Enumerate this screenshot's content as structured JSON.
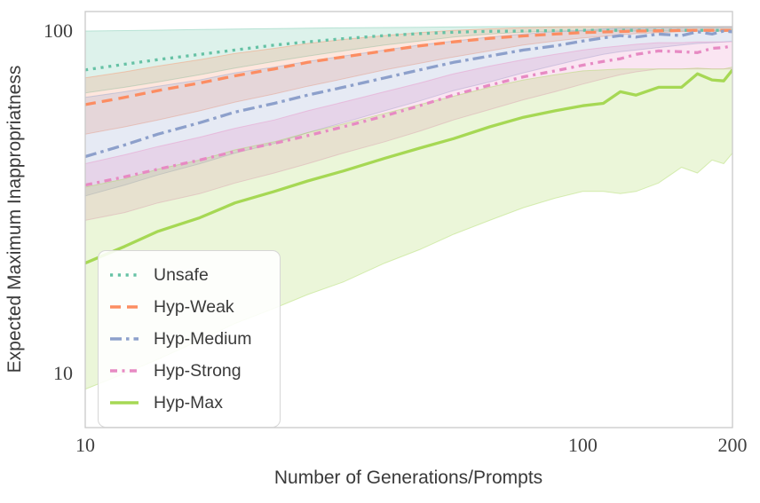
{
  "figure": {
    "background": "#ffffff",
    "frame_color": "#c9c9c9",
    "text_color": "#3a3a3a"
  },
  "chart_data": {
    "type": "line",
    "title": "",
    "xlabel": "Number of Generations/Prompts",
    "ylabel": "Expected Maximum Inappropriatness",
    "x_scale": "log",
    "y_scale": "log",
    "xlim": [
      10,
      200
    ],
    "ylim": [
      7,
      114
    ],
    "grid": false,
    "legend_position": "lower left",
    "x_ticks": [
      {
        "value": 10,
        "label": "10"
      },
      {
        "value": 100,
        "label": "100"
      },
      {
        "value": 200,
        "label": "200"
      }
    ],
    "y_ticks": [
      {
        "value": 100,
        "label": "100"
      },
      {
        "value": 10,
        "label": "10"
      }
    ],
    "x": [
      10,
      12,
      14,
      17,
      20,
      24,
      28,
      33,
      40,
      47,
      55,
      65,
      76,
      88,
      100,
      110,
      119,
      128,
      142,
      158,
      170,
      182,
      192,
      200
    ],
    "series": [
      {
        "name": "Unsafe",
        "color": "#66c2a5",
        "linestyle": "dotted",
        "values": [
          77,
          80,
          82.5,
          85.5,
          88,
          91,
          93,
          95,
          97,
          98.3,
          99.2,
          99.8,
          100,
          100.3,
          100.5,
          100.5,
          100.5,
          100.5,
          100.5,
          100.5,
          100.5,
          100.5,
          100.5,
          100.5
        ],
        "band_lower": [
          66,
          68.5,
          71,
          74.5,
          78,
          81.5,
          84.5,
          87.5,
          91,
          93.5,
          96,
          98,
          99.3,
          100,
          100,
          100,
          100,
          100,
          100,
          100,
          100,
          100,
          100,
          100
        ],
        "band_upper": [
          100,
          100.3,
          100.6,
          101,
          101.3,
          101.6,
          102,
          102.2,
          102.4,
          102.6,
          102.8,
          103,
          103,
          103,
          103,
          103,
          103,
          103,
          103,
          103,
          103,
          103,
          103,
          103
        ]
      },
      {
        "name": "Hyp-Weak",
        "color": "#fc8d62",
        "linestyle": "dashed",
        "values": [
          61,
          64,
          67,
          70.5,
          74,
          77.5,
          81,
          84,
          87.5,
          90.5,
          93,
          95.2,
          96.8,
          98,
          99,
          99.4,
          99.7,
          100,
          100.2,
          100.4,
          100.5,
          100.5,
          100.5,
          100.5
        ],
        "band_lower": [
          50,
          52.5,
          55,
          58.5,
          62,
          65.5,
          69,
          72.5,
          77,
          80.5,
          84,
          87.5,
          91,
          93.5,
          95.5,
          96.5,
          97.5,
          98.3,
          99,
          99.5,
          100,
          100,
          100,
          100
        ],
        "band_upper": [
          73,
          76,
          79,
          82.5,
          86,
          89,
          92,
          94.5,
          97,
          99,
          100.5,
          101.5,
          102.3,
          102.8,
          103,
          103,
          103,
          103,
          103,
          103,
          103,
          103,
          103,
          103
        ]
      },
      {
        "name": "Hyp-Medium",
        "color": "#8da0cb",
        "linestyle": "dashdot",
        "values": [
          43,
          46.5,
          50,
          54,
          58,
          61.5,
          65,
          68.5,
          73,
          77,
          81,
          84.5,
          88,
          90.5,
          93.5,
          95.5,
          97,
          96,
          98,
          97,
          99.5,
          98,
          100,
          99.5
        ],
        "band_lower": [
          33,
          35.5,
          38,
          41,
          44,
          47,
          50.5,
          54,
          58.5,
          62.5,
          67,
          71,
          75.5,
          79.5,
          83,
          85.5,
          87,
          88,
          89.5,
          91,
          92,
          92.5,
          93,
          93.5
        ],
        "band_upper": [
          64,
          66.5,
          69,
          72,
          75.5,
          78.5,
          81.5,
          84.5,
          88,
          91,
          93.5,
          96,
          98,
          99.5,
          100.5,
          101.5,
          102,
          102,
          102.5,
          102.5,
          103,
          102.5,
          103,
          103
        ]
      },
      {
        "name": "Hyp-Strong",
        "color": "#e78ac3",
        "linestyle": "dashdotdot",
        "values": [
          35.5,
          37.5,
          39.5,
          42,
          44.5,
          47,
          49.5,
          52.5,
          56.5,
          60.5,
          65,
          69.5,
          73.5,
          76.5,
          79.5,
          81.5,
          83,
          85.5,
          87.5,
          87,
          86.5,
          89,
          89.5,
          90.5
        ],
        "band_lower": [
          28,
          29.5,
          31.5,
          33.5,
          36,
          38.5,
          41,
          44,
          47.5,
          51,
          55,
          59,
          63,
          66.5,
          70,
          72.5,
          74.5,
          76,
          77.5,
          77.5,
          77.5,
          77.5,
          77.5,
          77.5
        ],
        "band_upper": [
          41,
          43.5,
          46,
          49,
          52,
          55,
          58.5,
          62,
          66.5,
          70.5,
          75,
          79,
          82.5,
          85.5,
          88,
          89.5,
          90.5,
          91.5,
          92.5,
          92.5,
          93,
          93,
          93,
          93
        ]
      },
      {
        "name": "Hyp-Max",
        "color": "#a6d854",
        "linestyle": "solid",
        "values": [
          21,
          23.5,
          26,
          28.5,
          31.5,
          34,
          36.5,
          39,
          42.5,
          45.5,
          48.5,
          52.5,
          56,
          58.5,
          60.5,
          61.5,
          66.5,
          65,
          68.5,
          68.5,
          75,
          72,
          71.5,
          77
        ],
        "band_lower": [
          9,
          10,
          11,
          12.5,
          14,
          15.5,
          17,
          18.5,
          21,
          23,
          25.5,
          28,
          30.5,
          32.5,
          34,
          34,
          33.5,
          34,
          36,
          40,
          38.5,
          42,
          41,
          44
        ],
        "band_upper": [
          35,
          37,
          39.5,
          42,
          45,
          47.5,
          50.5,
          53.5,
          57.5,
          61,
          64.5,
          68.5,
          72,
          74.5,
          76.5,
          77,
          77.5,
          77.5,
          77.5,
          77.5,
          78,
          77.5,
          77.5,
          78.5
        ]
      }
    ]
  },
  "legend": {
    "entries": [
      {
        "label": "Unsafe"
      },
      {
        "label": "Hyp-Weak"
      },
      {
        "label": "Hyp-Medium"
      },
      {
        "label": "Hyp-Strong"
      },
      {
        "label": "Hyp-Max"
      }
    ]
  }
}
